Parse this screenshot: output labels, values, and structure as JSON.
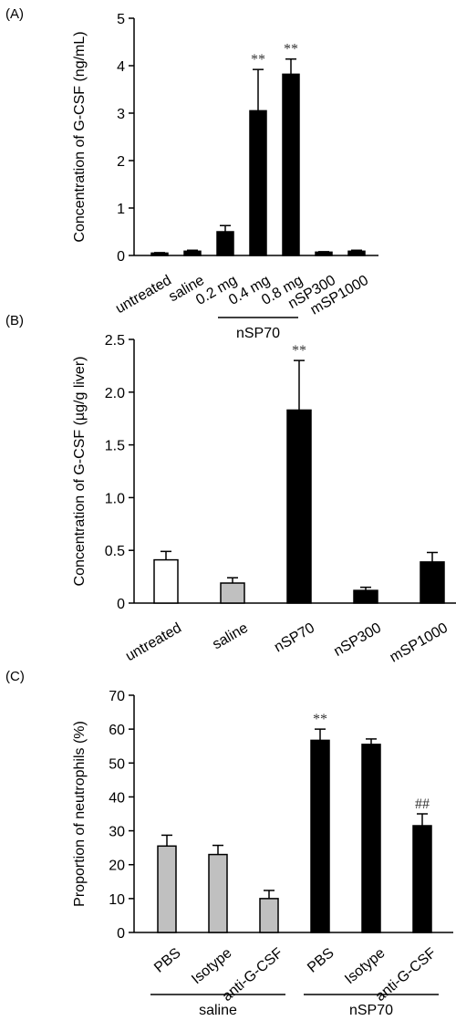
{
  "chart_data": [
    {
      "panel": "(A)",
      "type": "bar",
      "ylabel": "Concentration of G-CSF (ng/mL)",
      "ylim": [
        0,
        5
      ],
      "yticks": [
        0,
        1,
        2,
        3,
        4,
        5
      ],
      "categories": [
        "untreated",
        "saline",
        "0.2 mg",
        "0.4 mg",
        "0.8 mg",
        "nSP300",
        "mSP1000"
      ],
      "values": [
        0.05,
        0.09,
        0.5,
        3.05,
        3.82,
        0.07,
        0.09
      ],
      "errors": [
        0.01,
        0.02,
        0.13,
        0.87,
        0.32,
        0.01,
        0.02
      ],
      "fills": [
        "#000000",
        "#000000",
        "#000000",
        "#000000",
        "#000000",
        "#000000",
        "#000000"
      ],
      "significance": [
        "",
        "",
        "",
        "**",
        "**",
        "",
        ""
      ],
      "groups": [
        {
          "label": "nSP70",
          "from": 2,
          "to": 4
        }
      ]
    },
    {
      "panel": "(B)",
      "type": "bar",
      "ylabel": "Concentration of G-CSF (µg/g liver)",
      "ylim": [
        0,
        2.5
      ],
      "yticks": [
        "0",
        "0.5",
        "1.0",
        "1.5",
        "2.0",
        "2.5"
      ],
      "categories": [
        "untreated",
        "saline",
        "nSP70",
        "nSP300",
        "mSP1000"
      ],
      "values": [
        0.41,
        0.19,
        1.83,
        0.12,
        0.39
      ],
      "errors": [
        0.08,
        0.05,
        0.47,
        0.03,
        0.09
      ],
      "fills": [
        "#ffffff",
        "#c0c0c0",
        "#000000",
        "#000000",
        "#000000"
      ],
      "significance": [
        "",
        "",
        "**",
        "",
        ""
      ],
      "groups": []
    },
    {
      "panel": "(C)",
      "type": "bar",
      "ylabel": "Proportion of neutrophils (%)",
      "ylim": [
        0,
        70
      ],
      "yticks": [
        0,
        10,
        20,
        30,
        40,
        50,
        60,
        70
      ],
      "categories": [
        "PBS",
        "Isotype",
        "anti-G-CSF",
        "PBS",
        "Isotype",
        "anti-G-CSF"
      ],
      "values": [
        25.5,
        23,
        10,
        56.7,
        55.5,
        31.5
      ],
      "errors": [
        3.2,
        2.7,
        2.4,
        3.3,
        1.6,
        3.5
      ],
      "fills": [
        "#c0c0c0",
        "#c0c0c0",
        "#c0c0c0",
        "#000000",
        "#000000",
        "#000000"
      ],
      "significance": [
        "",
        "",
        "",
        "**",
        "",
        "##"
      ],
      "groups": [
        {
          "label": "saline",
          "from": 0,
          "to": 2
        },
        {
          "label": "nSP70",
          "from": 3,
          "to": 5
        }
      ]
    }
  ]
}
